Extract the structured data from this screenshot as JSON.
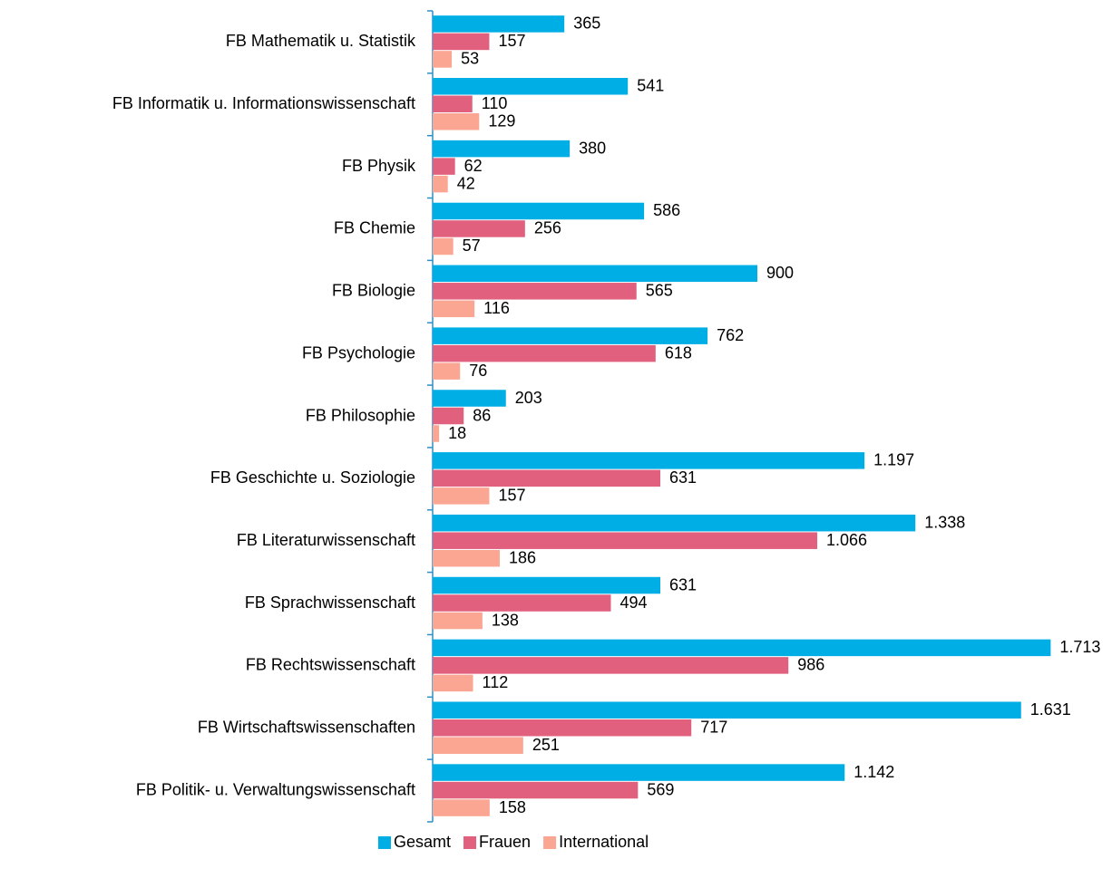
{
  "chart_data": {
    "type": "bar",
    "orientation": "horizontal",
    "categories": [
      "FB Mathematik u. Statistik",
      "FB Informatik u. Informationswissenschaft",
      "FB Physik",
      "FB Chemie",
      "FB Biologie",
      "FB Psychologie",
      "FB Philosophie",
      "FB Geschichte u. Soziologie",
      "FB Literaturwissenschaft",
      "FB Sprachwissenschaft",
      "FB Rechtswissenschaft",
      "FB Wirtschaftswissenschaften",
      "FB Politik- u. Verwaltungswissenschaft"
    ],
    "series": [
      {
        "name": "Gesamt",
        "color": "#00aee6",
        "values": [
          365,
          541,
          380,
          586,
          900,
          762,
          203,
          1197,
          1338,
          631,
          1713,
          1631,
          1142
        ],
        "value_labels": [
          "365",
          "541",
          "380",
          "586",
          "900",
          "762",
          "203",
          "1.197",
          "1.338",
          "631",
          "1.713",
          "1.631",
          "1.142"
        ]
      },
      {
        "name": "Frauen",
        "color": "#e0607e",
        "values": [
          157,
          110,
          62,
          256,
          565,
          618,
          86,
          631,
          1066,
          494,
          986,
          717,
          569
        ],
        "value_labels": [
          "157",
          "110",
          "62",
          "256",
          "565",
          "618",
          "86",
          "631",
          "1.066",
          "494",
          "986",
          "717",
          "569"
        ]
      },
      {
        "name": "International",
        "color": "#fba593",
        "values": [
          53,
          129,
          42,
          57,
          116,
          76,
          18,
          157,
          186,
          138,
          112,
          251,
          158
        ],
        "value_labels": [
          "53",
          "129",
          "42",
          "57",
          "116",
          "76",
          "18",
          "157",
          "186",
          "138",
          "112",
          "251",
          "158"
        ]
      }
    ],
    "xlim": [
      0,
      1800
    ],
    "legend": "bottom"
  }
}
